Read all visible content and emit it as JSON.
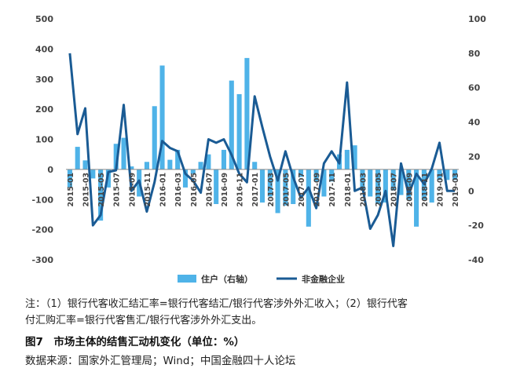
{
  "notes": {
    "line1": "注：（1）银行代客收汇结汇率=银行代客结汇/银行代客涉外外汇收入；（2）银行代客",
    "line2": "付汇购汇率=银行代客售汇/银行代客涉外外汇支出。",
    "caption": "图7　市场主体的结售汇动机变化（单位：%）",
    "source": "数据来源：国家外汇管理局；Wind；中国金融四十人论坛"
  },
  "chart_data": {
    "type": "bar+line",
    "categories": [
      "2015-01",
      "2015-02",
      "2015-03",
      "2015-04",
      "2015-05",
      "2015-06",
      "2015-07",
      "2015-08",
      "2015-09",
      "2015-10",
      "2015-11",
      "2015-12",
      "2016-01",
      "2016-02",
      "2016-03",
      "2016-04",
      "2016-05",
      "2016-06",
      "2016-07",
      "2016-08",
      "2016-09",
      "2016-10",
      "2016-11",
      "2016-12",
      "2017-01",
      "2017-02",
      "2017-03",
      "2017-04",
      "2017-05",
      "2017-06",
      "2017-07",
      "2017-08",
      "2017-09",
      "2017-10",
      "2017-11",
      "2017-12",
      "2018-01",
      "2018-02",
      "2018-03",
      "2018-04",
      "2018-05",
      "2018-06",
      "2018-07",
      "2018-08",
      "2018-09",
      "2018-10",
      "2018-11",
      "2018-12",
      "2019-01",
      "2019-02",
      "2019-03"
    ],
    "tick_labels": [
      "2015-01",
      "2015-03",
      "2015-05",
      "2015-07",
      "2015-09",
      "2015-11",
      "2016-01",
      "2016-03",
      "2016-05",
      "2016-07",
      "2016-09",
      "2016-11",
      "2017-01",
      "2017-03",
      "2017-05",
      "2017-07",
      "2017-09",
      "2017-11",
      "2018-01",
      "2018-03",
      "2018-05",
      "2018-07",
      "2018-09",
      "2018-11",
      "2019-01",
      "2019-03"
    ],
    "left_axis": {
      "min": -300,
      "max": 500,
      "ticks": [
        500,
        400,
        300,
        200,
        100,
        0,
        -100,
        -200,
        -300
      ]
    },
    "right_axis": {
      "min": -40,
      "max": 100,
      "ticks": [
        100,
        80,
        60,
        40,
        20,
        0,
        -20,
        -40
      ]
    },
    "series": [
      {
        "name": "住户（右轴）",
        "type": "bar",
        "axis": "left",
        "color": "#4fb3e8",
        "values": [
          -60,
          75,
          30,
          -30,
          -170,
          -60,
          85,
          105,
          10,
          -90,
          25,
          210,
          345,
          32,
          65,
          -60,
          -15,
          25,
          50,
          -115,
          65,
          295,
          250,
          370,
          25,
          -110,
          -90,
          -145,
          -120,
          -115,
          -25,
          -190,
          -40,
          -90,
          -40,
          50,
          65,
          80,
          -70,
          -90,
          -115,
          -110,
          -70,
          -85,
          -100,
          -190,
          -100,
          -110,
          -35,
          -35,
          -35
        ]
      },
      {
        "name": "非金融企业",
        "type": "line",
        "axis": "right",
        "color": "#1a5b94",
        "values": [
          80,
          33,
          48,
          -20,
          -14,
          11,
          12,
          50,
          0,
          6,
          -12,
          5,
          29,
          25,
          23,
          10,
          6,
          -1,
          30,
          28,
          30,
          21,
          10,
          5,
          55,
          37,
          20,
          6,
          23,
          8,
          -4,
          2,
          -10,
          16,
          23,
          16,
          63,
          0,
          2,
          -22,
          -14,
          0,
          -32,
          16,
          -2,
          10,
          4,
          13,
          28,
          0,
          0
        ]
      }
    ],
    "legend": "bottom"
  }
}
